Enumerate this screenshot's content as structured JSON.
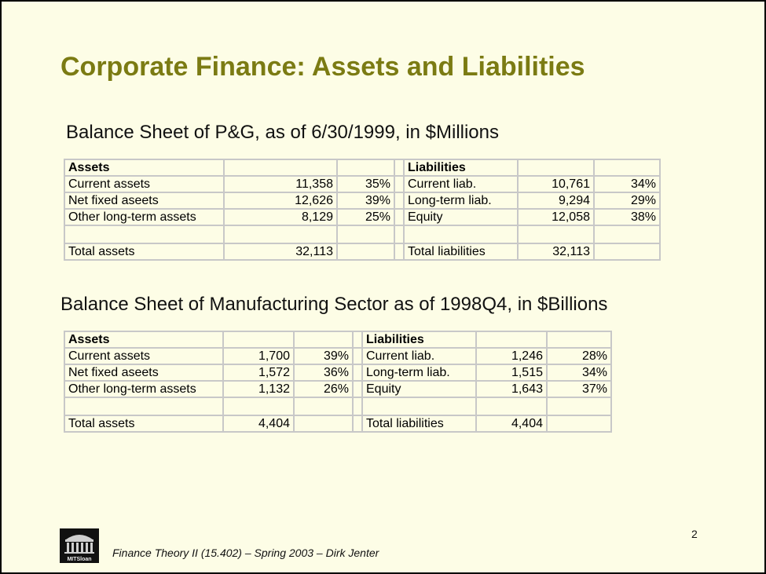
{
  "slide": {
    "title": "Corporate Finance: Assets and Liabilities",
    "page_number": "2",
    "footer": "Finance Theory II (15.402) – Spring 2003 – Dirk Jenter",
    "logo_text": "MITSloan"
  },
  "pg": {
    "heading": "Balance Sheet of P&G, as of 6/30/1999, in $Millions",
    "assets_header": "Assets",
    "liabilities_header": "Liabilities",
    "rows": [
      {
        "a_label": "Current assets",
        "a_value": "11,358",
        "a_pct": "35%",
        "l_label": "Current liab.",
        "l_value": "10,761",
        "l_pct": "34%"
      },
      {
        "a_label": "Net fixed aseets",
        "a_value": "12,626",
        "a_pct": "39%",
        "l_label": "Long-term liab.",
        "l_value": "9,294",
        "l_pct": "29%"
      },
      {
        "a_label": "Other long-term assets",
        "a_value": "8,129",
        "a_pct": "25%",
        "l_label": "Equity",
        "l_value": "12,058",
        "l_pct": "38%"
      }
    ],
    "total": {
      "a_label": "Total assets",
      "a_value": "32,113",
      "l_label": "Total liabilities",
      "l_value": "32,113"
    }
  },
  "mfg": {
    "heading": "Balance Sheet of Manufacturing Sector as of 1998Q4, in $Billions",
    "assets_header": "Assets",
    "liabilities_header": "Liabilities",
    "rows": [
      {
        "a_label": "Current assets",
        "a_value": "1,700",
        "a_pct": "39%",
        "l_label": "Current liab.",
        "l_value": "1,246",
        "l_pct": "28%"
      },
      {
        "a_label": "Net fixed aseets",
        "a_value": "1,572",
        "a_pct": "36%",
        "l_label": "Long-term liab.",
        "l_value": "1,515",
        "l_pct": "34%"
      },
      {
        "a_label": "Other long-term assets",
        "a_value": "1,132",
        "a_pct": "26%",
        "l_label": "Equity",
        "l_value": "1,643",
        "l_pct": "37%"
      }
    ],
    "total": {
      "a_label": "Total assets",
      "a_value": "4,404",
      "l_label": "Total liabilities",
      "l_value": "4,404"
    }
  }
}
